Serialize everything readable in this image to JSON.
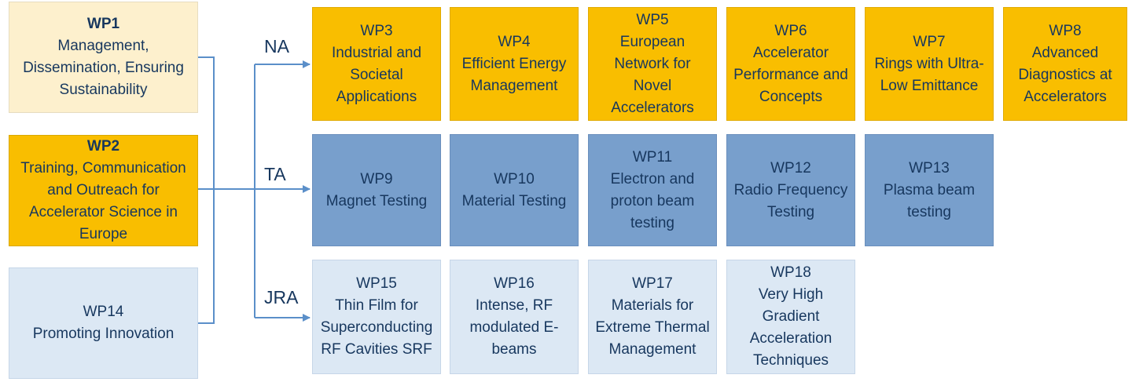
{
  "left": [
    {
      "id": "WP1",
      "text": "Management,\nDissemination, Ensuring\nSustainability"
    },
    {
      "id": "WP2",
      "text": "Training, Communication\nand Outreach for\nAccelerator Science in\nEurope"
    },
    {
      "id": "WP14",
      "text": "WP14\nPromoting Innovation"
    }
  ],
  "categories": {
    "na": "NA",
    "ta": "TA",
    "jra": "JRA"
  },
  "na": [
    "WP3\nIndustrial and\nSocietal\nApplications",
    "WP4\nEfficient Energy\nManagement",
    "WP5\nEuropean\nNetwork for\nNovel\nAccelerators",
    "WP6\nAccelerator\nPerformance and\nConcepts",
    "WP7\nRings with Ultra-\nLow Emittance",
    "WP8\nAdvanced\nDiagnostics at\nAccelerators"
  ],
  "ta": [
    "WP9\nMagnet Testing",
    "WP10\nMaterial Testing",
    "WP11\nElectron and\nproton beam\ntesting",
    "WP12\nRadio Frequency\nTesting",
    "WP13\nPlasma beam\ntesting"
  ],
  "jra": [
    "WP15\nThin Film for\nSuperconducting\nRF Cavities SRF",
    "WP16\nIntense, RF\nmodulated E-\nbeams",
    "WP17\nMaterials for\nExtreme Thermal\nManagement",
    "WP18\nVery High\nGradient\nAcceleration\nTechniques"
  ],
  "colors": {
    "line": "#5b8fc9",
    "text": "#17375e"
  }
}
